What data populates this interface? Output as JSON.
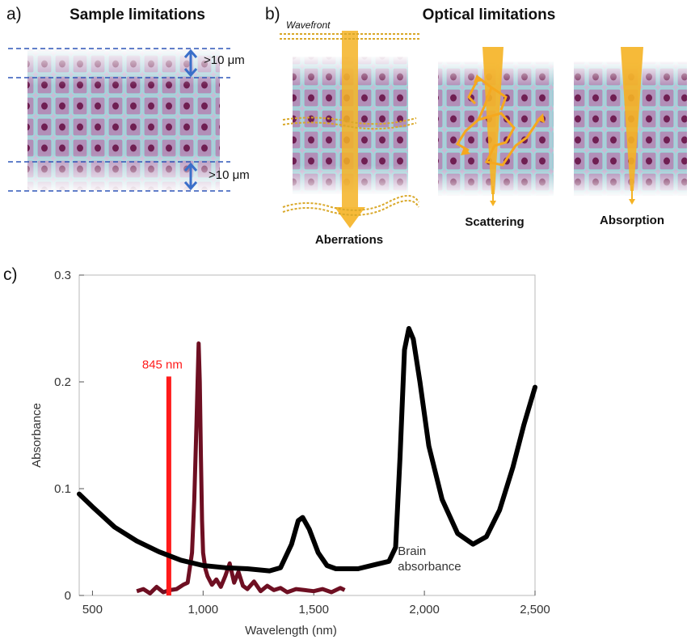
{
  "panel_a": {
    "letter": "a)",
    "title": "Sample limitations",
    "top_label": ">10 μm",
    "bottom_label": ">10 μm"
  },
  "panel_b": {
    "letter": "b)",
    "title": "Optical limitations",
    "wavefront_label": "Wavefront",
    "captions": [
      "Aberrations",
      "Scattering",
      "Absorption"
    ]
  },
  "panel_c": {
    "letter": "c)"
  },
  "colors": {
    "beam": "#f5b324",
    "beam_dash": "#d9a82a",
    "dash_line": "#2f56b8",
    "arrow": "#3a6fc9",
    "brain_curve": "#000000",
    "laser_curve": "#6e0f22",
    "marker": "#ff1a1a",
    "tissue_bg": "#c9bfd6",
    "cell_wall": "#8fd0d6",
    "nucleus": "#7a2457"
  },
  "chart_data": {
    "type": "line",
    "xlabel": "Wavelength (nm)",
    "ylabel": "Absorbance",
    "xlim": [
      440,
      2500
    ],
    "ylim": [
      0,
      0.3
    ],
    "xticks": [
      500,
      1000,
      1500,
      2000,
      2500
    ],
    "xtick_labels": [
      "500",
      "1,000",
      "1,500",
      "2,000",
      "2,500"
    ],
    "yticks": [
      0,
      0.1,
      0.2,
      0.3
    ],
    "ytick_labels": [
      "0",
      "0.1",
      "0.2",
      "0.3"
    ],
    "grid": false,
    "series": [
      {
        "name": "Brain absorbance",
        "label_lines": [
          "Brain",
          "absorbance"
        ],
        "x": [
          440,
          500,
          600,
          700,
          800,
          900,
          1000,
          1100,
          1200,
          1300,
          1350,
          1400,
          1430,
          1450,
          1480,
          1520,
          1560,
          1600,
          1700,
          1780,
          1840,
          1870,
          1890,
          1910,
          1930,
          1950,
          1980,
          2020,
          2080,
          2150,
          2220,
          2280,
          2340,
          2400,
          2450,
          2500
        ],
        "y": [
          0.095,
          0.083,
          0.064,
          0.051,
          0.041,
          0.033,
          0.028,
          0.026,
          0.025,
          0.023,
          0.026,
          0.048,
          0.07,
          0.073,
          0.062,
          0.04,
          0.028,
          0.025,
          0.025,
          0.029,
          0.032,
          0.045,
          0.13,
          0.23,
          0.25,
          0.24,
          0.2,
          0.14,
          0.09,
          0.058,
          0.048,
          0.055,
          0.08,
          0.12,
          0.16,
          0.195
        ]
      },
      {
        "name": "",
        "x": [
          700,
          730,
          760,
          790,
          820,
          850,
          880,
          910,
          930,
          950,
          960,
          970,
          975,
          980,
          985,
          990,
          995,
          1000,
          1010,
          1020,
          1040,
          1060,
          1080,
          1100,
          1120,
          1140,
          1160,
          1180,
          1200,
          1230,
          1260,
          1290,
          1320,
          1350,
          1380,
          1420,
          1460,
          1500,
          1540,
          1580,
          1620,
          1640
        ],
        "y": [
          0.004,
          0.006,
          0.002,
          0.008,
          0.003,
          0.005,
          0.006,
          0.01,
          0.012,
          0.04,
          0.09,
          0.16,
          0.2,
          0.236,
          0.2,
          0.13,
          0.07,
          0.04,
          0.025,
          0.018,
          0.01,
          0.015,
          0.008,
          0.018,
          0.03,
          0.012,
          0.022,
          0.009,
          0.006,
          0.013,
          0.004,
          0.009,
          0.005,
          0.007,
          0.003,
          0.006,
          0.005,
          0.004,
          0.006,
          0.003,
          0.007,
          0.005
        ]
      }
    ],
    "markers": [
      {
        "label": "845 nm",
        "x": 845,
        "y_top": 0.205
      }
    ]
  }
}
